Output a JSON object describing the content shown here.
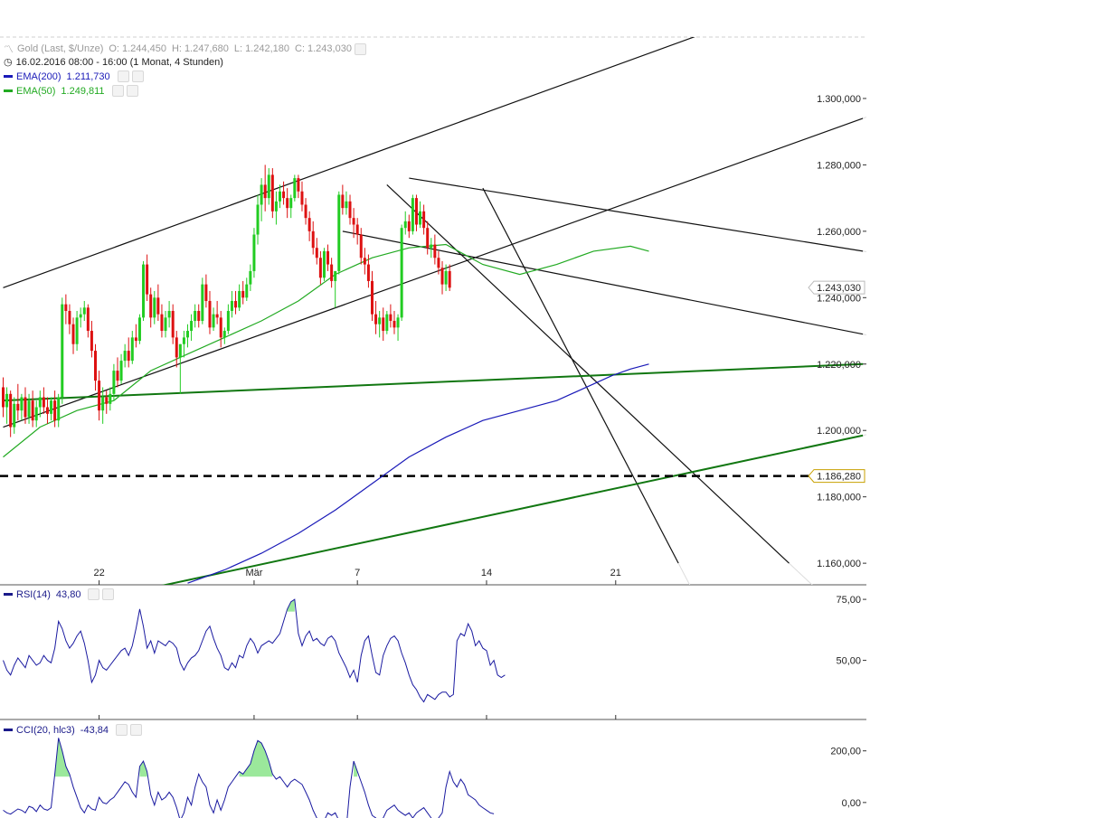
{
  "header": {
    "instrument": "Gold (Last, $/Unze)",
    "ohlc": [
      {
        "label": "O:",
        "value": "1.244,450"
      },
      {
        "label": "H:",
        "value": "1.247,680"
      },
      {
        "label": "L:",
        "value": "1.242,180"
      },
      {
        "label": "C:",
        "value": "1.243,030"
      }
    ],
    "timeframe": "16.02.2016 08:00 - 16:00 (1 Monat, 4 Stunden)"
  },
  "indicators": {
    "ema200": {
      "label": "EMA(200)",
      "value": "1.211,730",
      "color": "#1a1ab8"
    },
    "ema50": {
      "label": "EMA(50)",
      "value": "1.249,811",
      "color": "#22aa22"
    },
    "rsi": {
      "label": "RSI(14)",
      "value": "43,80"
    },
    "cci": {
      "label": "CCI(20, hlc3)",
      "value": "-43,84"
    }
  },
  "colors": {
    "up_candle": "#22cc22",
    "down_candle": "#dd1111",
    "trend_black": "#111111",
    "trend_green": "#117711",
    "ema200": "#1a1ab8",
    "ema50": "#22aa22",
    "fill_green": "#9be89b"
  },
  "chart_data": {
    "type": "candlestick",
    "price_axis": {
      "ticks": [
        {
          "value": 1300,
          "label": "1.300,000"
        },
        {
          "value": 1280,
          "label": "1.280,000"
        },
        {
          "value": 1260,
          "label": "1.260,000"
        },
        {
          "value": 1240,
          "label": "1.240,000"
        },
        {
          "value": 1220,
          "label": "1.220,000"
        },
        {
          "value": 1200,
          "label": "1.200,000"
        },
        {
          "value": 1180,
          "label": "1.180,000"
        },
        {
          "value": 1160,
          "label": "1.160,000"
        }
      ],
      "range": [
        1153.5,
        1318.5
      ]
    },
    "price_markers": [
      {
        "value": 1243.03,
        "label": "1.243,030",
        "kind": "last"
      },
      {
        "value": 1186.28,
        "label": "1.186,280",
        "kind": "level"
      }
    ],
    "x_axis": {
      "ticks": [
        {
          "bar": 26,
          "label": "22"
        },
        {
          "bar": 68,
          "label": "Mär"
        },
        {
          "bar": 96,
          "label": "7"
        },
        {
          "bar": 131,
          "label": "14"
        },
        {
          "bar": 166,
          "label": "21"
        }
      ],
      "bars_visible": 238
    },
    "candles": [
      [
        1213,
        1216,
        1204,
        1207
      ],
      [
        1207,
        1213,
        1202,
        1211
      ],
      [
        1211,
        1212,
        1198,
        1201
      ],
      [
        1201,
        1210,
        1199,
        1208
      ],
      [
        1208,
        1214,
        1203,
        1206
      ],
      [
        1206,
        1211,
        1203,
        1210
      ],
      [
        1210,
        1213,
        1202,
        1204
      ],
      [
        1204,
        1211,
        1202,
        1209
      ],
      [
        1209,
        1212,
        1201,
        1203
      ],
      [
        1203,
        1209,
        1201,
        1207
      ],
      [
        1207,
        1212,
        1204,
        1210
      ],
      [
        1210,
        1213,
        1205,
        1207
      ],
      [
        1207,
        1210,
        1202,
        1205
      ],
      [
        1205,
        1210,
        1203,
        1209
      ],
      [
        1209,
        1212,
        1201,
        1203
      ],
      [
        1203,
        1211,
        1201,
        1210
      ],
      [
        1210,
        1240,
        1208,
        1238
      ],
      [
        1238,
        1241,
        1232,
        1236
      ],
      [
        1236,
        1238,
        1229,
        1232
      ],
      [
        1232,
        1234,
        1223,
        1226
      ],
      [
        1226,
        1236,
        1224,
        1234
      ],
      [
        1234,
        1237,
        1231,
        1235
      ],
      [
        1235,
        1239,
        1233,
        1237
      ],
      [
        1237,
        1238,
        1228,
        1230
      ],
      [
        1230,
        1233,
        1222,
        1224
      ],
      [
        1224,
        1226,
        1212,
        1215
      ],
      [
        1215,
        1218,
        1203,
        1206
      ],
      [
        1206,
        1213,
        1202,
        1210
      ],
      [
        1210,
        1212,
        1205,
        1208
      ],
      [
        1208,
        1213,
        1206,
        1211
      ],
      [
        1211,
        1220,
        1209,
        1218
      ],
      [
        1218,
        1222,
        1213,
        1215
      ],
      [
        1215,
        1223,
        1214,
        1221
      ],
      [
        1221,
        1226,
        1219,
        1224
      ],
      [
        1224,
        1228,
        1219,
        1221
      ],
      [
        1221,
        1230,
        1220,
        1228
      ],
      [
        1228,
        1232,
        1225,
        1227
      ],
      [
        1227,
        1235,
        1226,
        1234
      ],
      [
        1234,
        1251,
        1233,
        1250
      ],
      [
        1250,
        1253,
        1239,
        1241
      ],
      [
        1241,
        1243,
        1231,
        1234
      ],
      [
        1234,
        1242,
        1232,
        1240
      ],
      [
        1240,
        1244,
        1233,
        1235
      ],
      [
        1235,
        1238,
        1228,
        1230
      ],
      [
        1230,
        1236,
        1228,
        1234
      ],
      [
        1234,
        1239,
        1231,
        1236
      ],
      [
        1236,
        1238,
        1226,
        1228
      ],
      [
        1228,
        1230,
        1219,
        1222
      ],
      [
        1222,
        1226,
        1211,
        1226
      ],
      [
        1226,
        1230,
        1222,
        1228
      ],
      [
        1228,
        1232,
        1225,
        1230
      ],
      [
        1230,
        1235,
        1227,
        1233
      ],
      [
        1233,
        1238,
        1231,
        1236
      ],
      [
        1236,
        1238,
        1231,
        1233
      ],
      [
        1233,
        1246,
        1232,
        1244
      ],
      [
        1244,
        1247,
        1237,
        1239
      ],
      [
        1239,
        1242,
        1229,
        1231
      ],
      [
        1231,
        1237,
        1230,
        1235
      ],
      [
        1235,
        1239,
        1232,
        1234
      ],
      [
        1234,
        1236,
        1225,
        1228
      ],
      [
        1228,
        1231,
        1226,
        1230
      ],
      [
        1230,
        1238,
        1229,
        1236
      ],
      [
        1236,
        1242,
        1234,
        1239
      ],
      [
        1239,
        1242,
        1235,
        1237
      ],
      [
        1237,
        1244,
        1236,
        1242
      ],
      [
        1242,
        1245,
        1238,
        1240
      ],
      [
        1240,
        1246,
        1239,
        1244
      ],
      [
        1244,
        1250,
        1242,
        1248
      ],
      [
        1248,
        1261,
        1246,
        1259
      ],
      [
        1259,
        1271,
        1256,
        1268
      ],
      [
        1268,
        1276,
        1263,
        1274
      ],
      [
        1274,
        1280,
        1266,
        1270
      ],
      [
        1270,
        1279,
        1268,
        1277
      ],
      [
        1277,
        1279,
        1264,
        1266
      ],
      [
        1266,
        1272,
        1262,
        1269
      ],
      [
        1269,
        1274,
        1267,
        1272
      ],
      [
        1272,
        1275,
        1268,
        1270
      ],
      [
        1270,
        1273,
        1264,
        1267
      ],
      [
        1267,
        1271,
        1264,
        1270
      ],
      [
        1270,
        1277,
        1269,
        1276
      ],
      [
        1276,
        1277,
        1270,
        1272
      ],
      [
        1272,
        1275,
        1266,
        1268
      ],
      [
        1268,
        1270,
        1262,
        1264
      ],
      [
        1264,
        1266,
        1257,
        1260
      ],
      [
        1260,
        1263,
        1253,
        1255
      ],
      [
        1255,
        1258,
        1250,
        1252
      ],
      [
        1252,
        1254,
        1244,
        1246
      ],
      [
        1246,
        1255,
        1245,
        1254
      ],
      [
        1254,
        1256,
        1248,
        1250
      ],
      [
        1250,
        1252,
        1243,
        1245
      ],
      [
        1245,
        1248,
        1237,
        1248
      ],
      [
        1248,
        1272,
        1247,
        1271
      ],
      [
        1271,
        1274,
        1265,
        1267
      ],
      [
        1267,
        1272,
        1265,
        1269
      ],
      [
        1269,
        1271,
        1262,
        1264
      ],
      [
        1264,
        1267,
        1258,
        1262
      ],
      [
        1262,
        1264,
        1256,
        1259
      ],
      [
        1259,
        1261,
        1250,
        1252
      ],
      [
        1252,
        1255,
        1247,
        1250
      ],
      [
        1250,
        1253,
        1243,
        1245
      ],
      [
        1245,
        1248,
        1233,
        1235
      ],
      [
        1235,
        1239,
        1229,
        1232
      ],
      [
        1232,
        1236,
        1228,
        1234
      ],
      [
        1234,
        1237,
        1227,
        1230
      ],
      [
        1230,
        1236,
        1229,
        1235
      ],
      [
        1235,
        1238,
        1231,
        1233
      ],
      [
        1233,
        1236,
        1229,
        1231
      ],
      [
        1231,
        1235,
        1227,
        1234
      ],
      [
        1234,
        1262,
        1233,
        1261
      ],
      [
        1261,
        1266,
        1259,
        1263
      ],
      [
        1263,
        1265,
        1258,
        1260
      ],
      [
        1260,
        1271,
        1259,
        1270
      ],
      [
        1270,
        1271,
        1260,
        1262
      ],
      [
        1262,
        1269,
        1261,
        1266
      ],
      [
        1266,
        1268,
        1259,
        1261
      ],
      [
        1261,
        1263,
        1253,
        1255
      ],
      [
        1255,
        1258,
        1252,
        1256
      ],
      [
        1256,
        1259,
        1250,
        1252
      ],
      [
        1252,
        1254,
        1247,
        1249
      ],
      [
        1249,
        1251,
        1241,
        1244
      ],
      [
        1244,
        1250,
        1242,
        1248
      ],
      [
        1248,
        1250,
        1242,
        1243
      ]
    ],
    "ema200": [
      [
        50,
        1154
      ],
      [
        60,
        1158
      ],
      [
        70,
        1163
      ],
      [
        80,
        1169
      ],
      [
        90,
        1176
      ],
      [
        100,
        1184
      ],
      [
        110,
        1192
      ],
      [
        120,
        1198
      ],
      [
        130,
        1203
      ],
      [
        140,
        1206
      ],
      [
        150,
        1209
      ],
      [
        160,
        1214
      ],
      [
        165,
        1216.5
      ],
      [
        170,
        1218.5
      ],
      [
        175,
        1220
      ]
    ],
    "ema50": [
      [
        0,
        1192
      ],
      [
        10,
        1201
      ],
      [
        20,
        1206
      ],
      [
        30,
        1209
      ],
      [
        40,
        1218
      ],
      [
        50,
        1223
      ],
      [
        60,
        1228
      ],
      [
        70,
        1233
      ],
      [
        80,
        1239
      ],
      [
        90,
        1247
      ],
      [
        100,
        1252
      ],
      [
        110,
        1255
      ],
      [
        120,
        1256
      ],
      [
        130,
        1250
      ],
      [
        140,
        1247
      ],
      [
        150,
        1250
      ],
      [
        160,
        1254
      ],
      [
        170,
        1255.5
      ],
      [
        175,
        1254
      ]
    ],
    "trendlines": [
      {
        "color": "black",
        "width": 1.2,
        "from": [
          0,
          1243
        ],
        "to": [
          233,
          1337
        ]
      },
      {
        "color": "black",
        "width": 1.2,
        "from": [
          0,
          1201
        ],
        "to": [
          233,
          1294
        ]
      },
      {
        "color": "black",
        "width": 1.2,
        "from": [
          110,
          1276
        ],
        "to": [
          233,
          1254
        ]
      },
      {
        "color": "black",
        "width": 1.2,
        "from": [
          92,
          1260
        ],
        "to": [
          233,
          1229
        ]
      },
      {
        "color": "black",
        "width": 1.2,
        "from": [
          104,
          1274
        ],
        "to": [
          213,
          1160
        ]
      },
      {
        "color": "black",
        "width": 1.2,
        "from": [
          130,
          1273
        ],
        "to": [
          183,
          1160
        ]
      },
      {
        "color": "green",
        "width": 2,
        "from": [
          0,
          1209
        ],
        "to": [
          233,
          1220
        ]
      },
      {
        "color": "green",
        "width": 2,
        "from": [
          0,
          1143
        ],
        "to": [
          233,
          1198.5
        ]
      }
    ],
    "horizontal_lines": [
      {
        "value": 1186.28,
        "style": "dashed",
        "color": "black"
      }
    ],
    "rsi": {
      "ticks": [
        {
          "value": 75,
          "label": "75,00"
        },
        {
          "value": 50,
          "label": "50,00"
        }
      ],
      "range": [
        28,
        78
      ],
      "values": [
        50,
        46,
        44,
        48,
        51,
        49,
        47,
        52,
        50,
        48,
        49,
        52,
        50,
        49,
        55,
        66,
        63,
        58,
        55,
        57,
        60,
        62,
        57,
        50,
        41,
        44,
        50,
        47,
        46,
        48,
        50,
        52,
        54,
        55,
        52,
        56,
        63,
        71,
        64,
        55,
        58,
        53,
        58,
        57,
        56,
        58,
        57,
        55,
        49,
        46,
        49,
        51,
        52,
        54,
        58,
        62,
        64,
        59,
        55,
        52,
        47,
        46,
        49,
        47,
        52,
        51,
        56,
        59,
        57,
        53,
        56,
        57,
        58,
        57,
        59,
        61,
        66,
        71,
        74,
        75,
        61,
        56,
        60,
        62,
        58,
        59,
        57,
        56,
        59,
        60,
        58,
        53,
        50,
        47,
        43,
        46,
        41,
        52,
        58,
        60,
        52,
        45,
        44,
        52,
        56,
        59,
        60,
        58,
        53,
        49,
        44,
        40,
        38,
        35,
        33,
        36,
        35,
        34,
        36,
        37,
        37,
        35,
        36,
        58,
        61,
        60,
        65,
        62,
        56,
        58,
        55,
        54,
        48,
        50,
        44,
        43,
        44
      ]
    },
    "cci": {
      "ticks": [
        {
          "value": 200,
          "label": "200,00"
        },
        {
          "value": 0,
          "label": "0,00"
        }
      ],
      "range": [
        -60,
        290
      ],
      "overbought": 100,
      "values": [
        -30,
        -40,
        -45,
        -35,
        -25,
        -30,
        -40,
        -15,
        -20,
        -35,
        -10,
        -25,
        -30,
        -20,
        110,
        250,
        200,
        140,
        110,
        60,
        20,
        -20,
        -40,
        -10,
        -25,
        -30,
        20,
        0,
        -5,
        10,
        20,
        40,
        60,
        80,
        70,
        40,
        20,
        140,
        160,
        120,
        30,
        -10,
        40,
        10,
        20,
        40,
        20,
        -20,
        -70,
        -40,
        20,
        -10,
        60,
        110,
        80,
        60,
        -10,
        -40,
        10,
        -30,
        10,
        60,
        80,
        100,
        120,
        110,
        130,
        150,
        200,
        240,
        230,
        200,
        160,
        110,
        90,
        100,
        80,
        60,
        80,
        90,
        80,
        70,
        40,
        10,
        -30,
        -60,
        -80,
        -70,
        -40,
        -50,
        -40,
        -70,
        -90,
        -100,
        60,
        160,
        120,
        80,
        40,
        -10,
        -50,
        -60,
        -90,
        -60,
        -30,
        -20,
        -10,
        -30,
        -40,
        -50,
        -40,
        -60,
        -40,
        -30,
        -20,
        -40,
        -60,
        -80,
        -60,
        -40,
        60,
        120,
        80,
        60,
        90,
        70,
        30,
        20,
        10,
        -10,
        -20,
        -30,
        -40,
        -44
      ]
    }
  }
}
